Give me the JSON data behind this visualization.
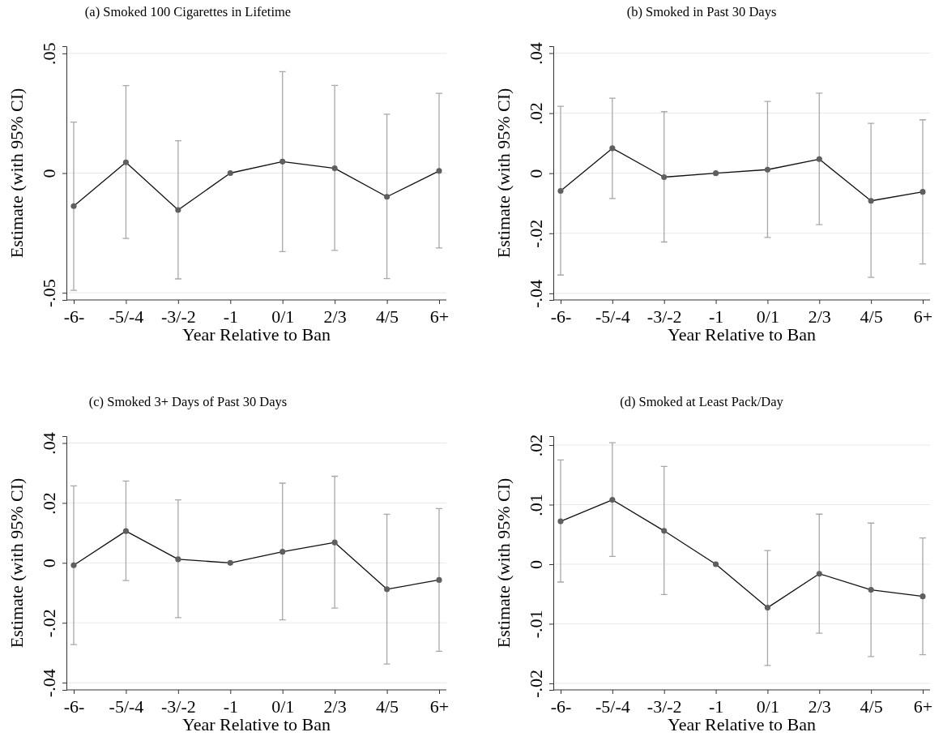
{
  "chart_data": [
    {
      "type": "line",
      "title": "(a) Smoked 100 Cigarettes in Lifetime",
      "xlabel": "Year Relative to Ban",
      "ylabel": "Estimate (with 95% CI)",
      "categories": [
        "-6-",
        "-5/-4",
        "-3/-2",
        "-1",
        "0/1",
        "2/3",
        "4/5",
        "6+"
      ],
      "ylim": [
        -0.053,
        0.053
      ],
      "yticks": [
        {
          "value": -0.05,
          "label": "-.05"
        },
        {
          "value": 0,
          "label": "0"
        },
        {
          "value": 0.05,
          "label": ".05"
        }
      ],
      "grid": "y",
      "marker": "circle",
      "series": [
        {
          "color": "#5f5f5f",
          "values": [
            -0.0138,
            0.0045,
            -0.0154,
            0,
            0.0048,
            0.002,
            -0.0099,
            0.0009
          ],
          "errors": [
            [
              -0.049,
              0.0213
            ],
            [
              -0.0273,
              0.0365
            ],
            [
              -0.0442,
              0.0135
            ],
            null,
            [
              -0.0328,
              0.0424
            ],
            [
              -0.0323,
              0.0366
            ],
            [
              -0.0441,
              0.0246
            ],
            [
              -0.0313,
              0.0333
            ]
          ]
        }
      ]
    },
    {
      "type": "line",
      "title": "(b) Smoked in Past 30 Days",
      "xlabel": "Year Relative to Ban",
      "ylabel": "Estimate (with 95% CI)",
      "categories": [
        "-6-",
        "-5/-4",
        "-3/-2",
        "-1",
        "0/1",
        "2/3",
        "4/5",
        "6+"
      ],
      "ylim": [
        -0.0422,
        0.0423
      ],
      "yticks": [
        {
          "value": -0.04,
          "label": "-.04"
        },
        {
          "value": -0.02,
          "label": "-.02"
        },
        {
          "value": 0,
          "label": "0"
        },
        {
          "value": 0.02,
          "label": ".02"
        },
        {
          "value": 0.04,
          "label": ".04"
        }
      ],
      "grid": "y",
      "marker": "circle",
      "series": [
        {
          "color": "#5f5f5f",
          "values": [
            -0.0059,
            0.0083,
            -0.0013,
            0,
            0.0012,
            0.0047,
            -0.0092,
            -0.0062
          ],
          "errors": [
            [
              -0.0339,
              0.0223
            ],
            [
              -0.0084,
              0.025
            ],
            [
              -0.0229,
              0.0205
            ],
            null,
            [
              -0.0214,
              0.0239
            ],
            [
              -0.0171,
              0.0267
            ],
            [
              -0.0347,
              0.0166
            ],
            [
              -0.0302,
              0.0178
            ]
          ]
        }
      ]
    },
    {
      "type": "line",
      "title": "(c) Smoked 3+ Days of Past 30 Days",
      "xlabel": "Year Relative to Ban",
      "ylabel": "Estimate (with 95% CI)",
      "categories": [
        "-6-",
        "-5/-4",
        "-3/-2",
        "-1",
        "0/1",
        "2/3",
        "4/5",
        "6+"
      ],
      "ylim": [
        -0.0424,
        0.0423
      ],
      "yticks": [
        {
          "value": -0.04,
          "label": "-.04"
        },
        {
          "value": -0.02,
          "label": "-.02"
        },
        {
          "value": 0,
          "label": "0"
        },
        {
          "value": 0.02,
          "label": ".02"
        },
        {
          "value": 0.04,
          "label": ".04"
        }
      ],
      "grid": "y",
      "marker": "circle",
      "series": [
        {
          "color": "#5f5f5f",
          "values": [
            -0.0008,
            0.0106,
            0.0012,
            0,
            0.0037,
            0.0068,
            -0.0088,
            -0.0057
          ],
          "errors": [
            [
              -0.0273,
              0.0257
            ],
            [
              -0.0059,
              0.0273
            ],
            [
              -0.0183,
              0.021
            ],
            null,
            [
              -0.019,
              0.0266
            ],
            [
              -0.0151,
              0.0289
            ],
            [
              -0.0338,
              0.0162
            ],
            [
              -0.0295,
              0.0181
            ]
          ]
        }
      ]
    },
    {
      "type": "line",
      "title": "(d) Smoked at Least Pack/Day",
      "xlabel": "Year Relative to Ban",
      "ylabel": "Estimate (with 95% CI)",
      "categories": [
        "-6-",
        "-5/-4",
        "-3/-2",
        "-1",
        "0/1",
        "2/3",
        "4/5",
        "6+"
      ],
      "ylim": [
        -0.0211,
        0.0215
      ],
      "yticks": [
        {
          "value": -0.02,
          "label": "-.02"
        },
        {
          "value": -0.01,
          "label": "-.01"
        },
        {
          "value": 0,
          "label": "0"
        },
        {
          "value": 0.01,
          "label": ".01"
        },
        {
          "value": 0.02,
          "label": ".02"
        }
      ],
      "grid": "y",
      "marker": "circle",
      "series": [
        {
          "color": "#5f5f5f",
          "values": [
            0.0072,
            0.0108,
            0.0056,
            0,
            -0.0073,
            -0.0016,
            -0.0043,
            -0.0054
          ],
          "errors": [
            [
              -0.003,
              0.0175
            ],
            [
              0.0013,
              0.0204
            ],
            [
              -0.0051,
              0.0164
            ],
            null,
            [
              -0.017,
              0.0023
            ],
            [
              -0.0116,
              0.0084
            ],
            [
              -0.0155,
              0.0069
            ],
            [
              -0.0152,
              0.0044
            ]
          ]
        }
      ]
    }
  ]
}
